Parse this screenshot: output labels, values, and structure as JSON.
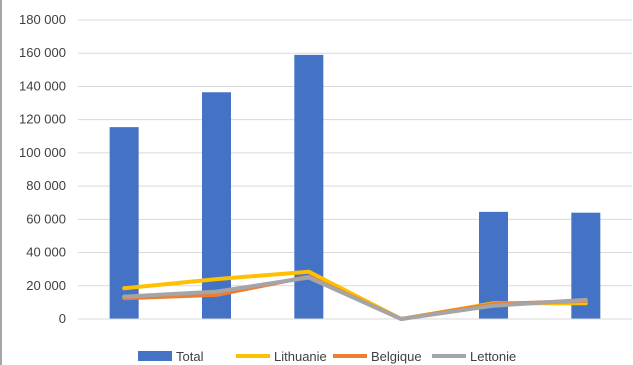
{
  "chart_data": {
    "type": "bar",
    "title": "",
    "xlabel": "",
    "ylabel": "",
    "ylim": [
      0,
      180000
    ],
    "yticks": [
      0,
      20000,
      40000,
      60000,
      80000,
      100000,
      120000,
      140000,
      160000,
      180000
    ],
    "ytick_labels": [
      "0",
      "20 000",
      "40 000",
      "60 000",
      "80 000",
      "100 000",
      "120 000",
      "140 000",
      "160 000",
      "180 000"
    ],
    "categories": [
      "",
      "",
      "",
      "",
      "",
      ""
    ],
    "grid": true,
    "legend_position": "bottom",
    "series": [
      {
        "name": "Total",
        "kind": "bar",
        "color": "#4472c4",
        "values": [
          115500,
          136500,
          159000,
          0,
          64500,
          64000
        ]
      },
      {
        "name": "Lithuanie",
        "kind": "line",
        "color": "#ffc000",
        "values": [
          18500,
          24000,
          28500,
          0,
          9500,
          9500
        ]
      },
      {
        "name": "Belgique",
        "kind": "line",
        "color": "#ed7d31",
        "values": [
          12500,
          14500,
          25500,
          0,
          9000,
          11000
        ]
      },
      {
        "name": "Lettonie",
        "kind": "line",
        "color": "#a5a5a5",
        "values": [
          13500,
          16500,
          25000,
          0,
          8000,
          11500
        ]
      }
    ]
  }
}
